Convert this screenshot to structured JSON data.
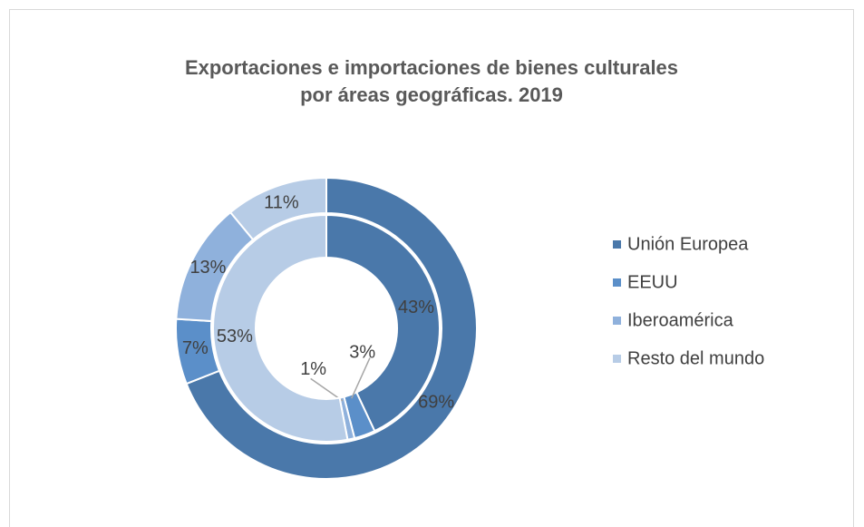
{
  "chart_data": {
    "type": "doughnut",
    "title": [
      "Exportaciones e importaciones de bienes culturales",
      "por áreas geográficas. 2019"
    ],
    "categories": [
      "Unión Europea",
      "EEUU",
      "Iberoamérica",
      "Resto del mundo"
    ],
    "colors": [
      "#4a78aa",
      "#5b8fc9",
      "#8fb1dc",
      "#b7cce6"
    ],
    "series": [
      {
        "values": [
          69,
          7,
          13,
          11
        ],
        "value_labels": [
          "69%",
          "7%",
          "13%",
          "11%"
        ]
      },
      {
        "values": [
          43,
          3,
          1,
          53
        ],
        "value_labels": [
          "43%",
          "3%",
          "1%",
          "53%"
        ]
      }
    ],
    "legend": "right"
  }
}
